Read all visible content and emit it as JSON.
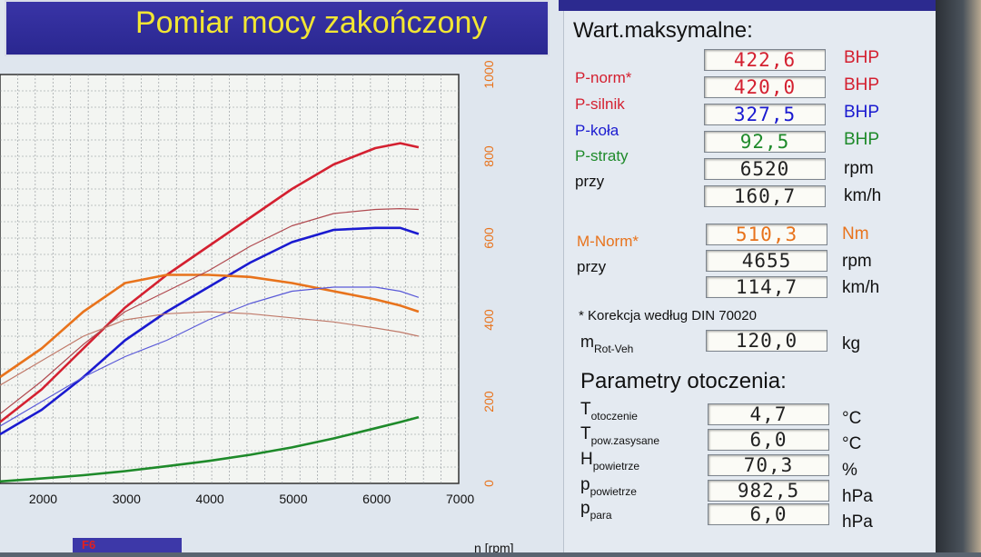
{
  "header": {
    "title": "Pomiar mocy zakończony"
  },
  "chart_data": {
    "type": "line",
    "xlabel": "n [rpm]",
    "x_ticks": [
      "2000",
      "3000",
      "4000",
      "5000",
      "6000",
      "7000"
    ],
    "y_ticks": [
      "0",
      "200",
      "400",
      "600",
      "800",
      "1000"
    ],
    "xlim": [
      1500,
      7000
    ],
    "ylim": [
      0,
      1000
    ],
    "grid": true,
    "series": [
      {
        "color": "#d42030",
        "x": [
          1500,
          2000,
          2500,
          3000,
          3500,
          4000,
          4500,
          5000,
          5500,
          6000,
          6300,
          6520
        ],
        "y": [
          150,
          230,
          330,
          430,
          510,
          580,
          650,
          720,
          780,
          820,
          832,
          822
        ]
      },
      {
        "color": "#1a1ad0",
        "x": [
          1500,
          2000,
          2500,
          3000,
          3500,
          4000,
          4500,
          5000,
          5500,
          6000,
          6300,
          6520
        ],
        "y": [
          120,
          180,
          260,
          350,
          420,
          480,
          540,
          590,
          620,
          625,
          625,
          610
        ]
      },
      {
        "color": "#e8731c",
        "x": [
          1500,
          2000,
          2500,
          3000,
          3500,
          4000,
          4500,
          5000,
          5500,
          6000,
          6300,
          6520
        ],
        "y": [
          260,
          330,
          420,
          490,
          510,
          510,
          505,
          490,
          470,
          450,
          435,
          420
        ]
      },
      {
        "color": "#b04a50",
        "x": [
          1500,
          2000,
          2500,
          3000,
          3500,
          4000,
          4500,
          5000,
          5500,
          6000,
          6300,
          6520
        ],
        "y": [
          170,
          250,
          340,
          420,
          470,
          520,
          580,
          630,
          660,
          670,
          672,
          670
        ]
      },
      {
        "color": "#5a5ad8",
        "x": [
          1500,
          2000,
          2500,
          3000,
          3500,
          4000,
          4500,
          5000,
          5500,
          6000,
          6300,
          6520
        ],
        "y": [
          140,
          200,
          260,
          310,
          350,
          400,
          440,
          470,
          480,
          480,
          470,
          455
        ]
      },
      {
        "color": "#c07a6a",
        "x": [
          1500,
          2000,
          2500,
          3000,
          3500,
          4000,
          4500,
          5000,
          5500,
          6000,
          6300,
          6520
        ],
        "y": [
          240,
          300,
          360,
          400,
          415,
          420,
          415,
          405,
          395,
          380,
          370,
          360
        ]
      },
      {
        "color": "#1e8a2a",
        "x": [
          1500,
          2000,
          2500,
          3000,
          3500,
          4000,
          4500,
          5000,
          5500,
          6000,
          6300,
          6520
        ],
        "y": [
          5,
          12,
          20,
          30,
          42,
          55,
          70,
          88,
          110,
          135,
          150,
          162
        ]
      }
    ]
  },
  "max_values": {
    "heading": "Wart.maksymalne:",
    "p_norm": {
      "label": "P-norm*",
      "value": "422,6",
      "unit": "BHP",
      "color": "#d42030"
    },
    "p_silnik": {
      "label": "P-silnik",
      "value": "420,0",
      "unit": "BHP",
      "color": "#d42030"
    },
    "p_kola": {
      "label": "P-koła",
      "value": "327,5",
      "unit": "BHP",
      "color": "#1a1ad0"
    },
    "p_straty": {
      "label": "P-straty",
      "value": "92,5",
      "unit": "BHP",
      "color": "#1e8a2a"
    },
    "przy_label": "przy",
    "rpm_value": "6520",
    "rpm_unit": "rpm",
    "speed_value": "160,7",
    "speed_unit": "km/h",
    "m_norm": {
      "label": "M-Norm*",
      "value": "510,3",
      "unit": "Nm",
      "color": "#e8731c"
    },
    "m_przy_label": "przy",
    "m_rpm_value": "4655",
    "m_rpm_unit": "rpm",
    "m_speed_value": "114,7",
    "m_speed_unit": "km/h"
  },
  "correction_note": "* Korekcja według DIN 70020",
  "mrot": {
    "main": "m",
    "sub": "Rot-Veh",
    "value": "120,0",
    "unit": "kg"
  },
  "ambient": {
    "heading": "Parametry otoczenia:",
    "t_otoczenie": {
      "main": "T",
      "sub": "otoczenie",
      "value": "4,7",
      "unit": "°C"
    },
    "t_zasysane": {
      "main": "T",
      "sub": "pow.zasysane",
      "value": "6,0",
      "unit": "°C"
    },
    "h_powietrze": {
      "main": "H",
      "sub": "powietrze",
      "value": "70,3",
      "unit": "%"
    },
    "p_powietrze": {
      "main": "p",
      "sub": "powietrze",
      "value": "982,5",
      "unit": "hPa"
    },
    "p_para": {
      "main": "p",
      "sub": "para",
      "value": "6,0",
      "unit": "hPa"
    }
  },
  "bottom": {
    "f6_label": "F6"
  }
}
